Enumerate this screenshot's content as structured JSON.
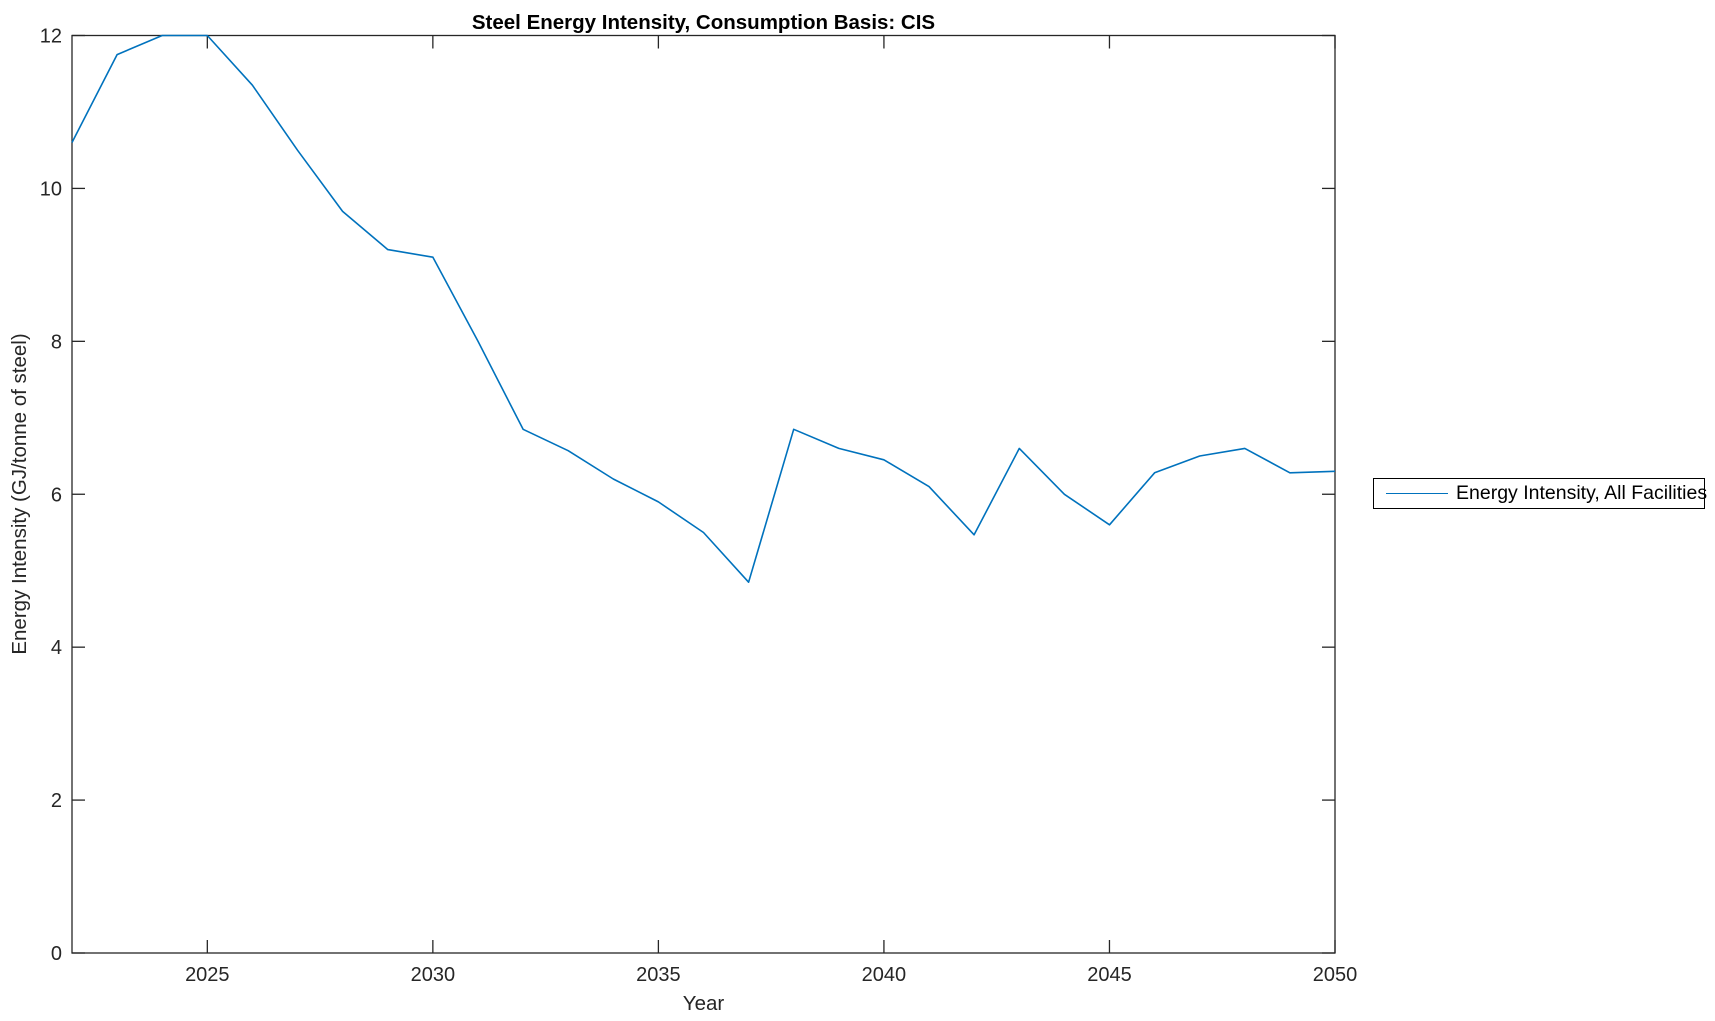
{
  "chart_data": {
    "type": "line",
    "title": "Steel Energy Intensity, Consumption Basis: CIS",
    "xlabel": "Year",
    "ylabel": "Energy Intensity (GJ/tonne of steel)",
    "x": [
      2022,
      2023,
      2024,
      2025,
      2026,
      2027,
      2028,
      2029,
      2030,
      2031,
      2032,
      2033,
      2034,
      2035,
      2036,
      2037,
      2038,
      2039,
      2040,
      2041,
      2042,
      2043,
      2044,
      2045,
      2046,
      2047,
      2048,
      2049,
      2050
    ],
    "series": [
      {
        "name": "Energy Intensity, All Facilities",
        "values": [
          10.6,
          11.75,
          12.0,
          12.0,
          11.35,
          10.5,
          9.7,
          9.2,
          9.1,
          8.0,
          6.85,
          6.57,
          6.2,
          5.9,
          5.5,
          4.85,
          6.85,
          6.6,
          6.45,
          6.1,
          5.47,
          6.6,
          6.0,
          5.6,
          6.28,
          6.5,
          6.6,
          6.28,
          6.3
        ]
      }
    ],
    "xlim": [
      2022,
      2050
    ],
    "ylim": [
      0,
      12
    ],
    "xticks": [
      2025,
      2030,
      2035,
      2040,
      2045,
      2050
    ],
    "yticks": [
      0,
      2,
      4,
      6,
      8,
      10,
      12
    ],
    "grid": false,
    "legend": [
      "Energy Intensity, All Facilities"
    ],
    "legend_position": "outside-right",
    "line_color": "#0072BD",
    "axis_color": "#262626",
    "background": "#ffffff"
  }
}
